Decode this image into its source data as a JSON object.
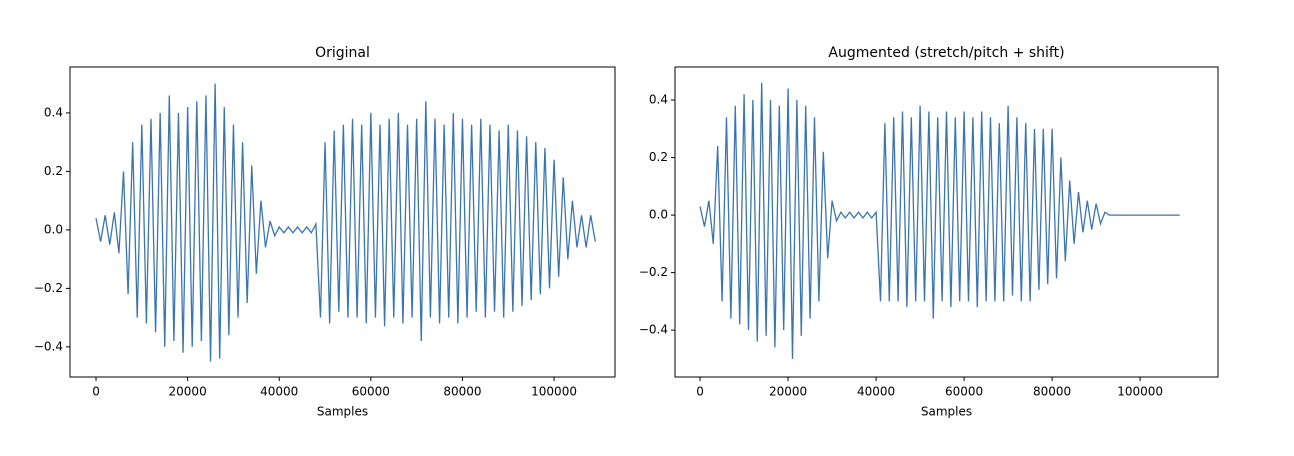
{
  "chart_data": [
    {
      "type": "line",
      "title": "Original",
      "xlabel": "Samples",
      "color": "#3a75b0",
      "x": [
        0,
        1000,
        2000,
        3000,
        4000,
        5000,
        6000,
        7000,
        8000,
        9000,
        10000,
        11000,
        12000,
        13000,
        14000,
        15000,
        16000,
        17000,
        18000,
        19000,
        20000,
        21000,
        22000,
        23000,
        24000,
        25000,
        26000,
        27000,
        28000,
        29000,
        30000,
        31000,
        32000,
        33000,
        34000,
        35000,
        36000,
        37000,
        38000,
        39000,
        40000,
        41000,
        42000,
        43000,
        44000,
        45000,
        46000,
        47000,
        48000,
        49000,
        50000,
        51000,
        52000,
        53000,
        54000,
        55000,
        56000,
        57000,
        58000,
        59000,
        60000,
        61000,
        62000,
        63000,
        64000,
        65000,
        66000,
        67000,
        68000,
        69000,
        70000,
        71000,
        72000,
        73000,
        74000,
        75000,
        76000,
        77000,
        78000,
        79000,
        80000,
        81000,
        82000,
        83000,
        84000,
        85000,
        86000,
        87000,
        88000,
        89000,
        90000,
        91000,
        92000,
        93000,
        94000,
        95000,
        96000,
        97000,
        98000,
        99000,
        100000,
        101000,
        102000,
        103000,
        104000,
        105000,
        106000,
        107000,
        108000,
        109000
      ],
      "values": [
        0.04,
        -0.04,
        0.05,
        -0.05,
        0.06,
        -0.08,
        0.2,
        -0.22,
        0.3,
        -0.3,
        0.36,
        -0.32,
        0.38,
        -0.35,
        0.4,
        -0.4,
        0.46,
        -0.38,
        0.4,
        -0.42,
        0.42,
        -0.4,
        0.44,
        -0.38,
        0.46,
        -0.45,
        0.5,
        -0.44,
        0.42,
        -0.36,
        0.36,
        -0.3,
        0.3,
        -0.25,
        0.22,
        -0.15,
        0.1,
        -0.06,
        0.03,
        -0.02,
        0.01,
        -0.01,
        0.01,
        -0.01,
        0.01,
        -0.01,
        0.01,
        -0.01,
        0.02,
        -0.3,
        0.3,
        -0.32,
        0.34,
        -0.28,
        0.36,
        -0.3,
        0.38,
        -0.3,
        0.36,
        -0.32,
        0.4,
        -0.3,
        0.36,
        -0.33,
        0.38,
        -0.3,
        0.4,
        -0.32,
        0.36,
        -0.3,
        0.38,
        -0.38,
        0.44,
        -0.3,
        0.38,
        -0.32,
        0.36,
        -0.3,
        0.4,
        -0.32,
        0.38,
        -0.3,
        0.36,
        -0.28,
        0.38,
        -0.3,
        0.36,
        -0.28,
        0.34,
        -0.3,
        0.36,
        -0.28,
        0.34,
        -0.26,
        0.32,
        -0.24,
        0.3,
        -0.22,
        0.28,
        -0.2,
        0.24,
        -0.16,
        0.18,
        -0.1,
        0.1,
        -0.06,
        0.05,
        -0.06,
        0.05,
        -0.04
      ],
      "xlim": [
        -5680,
        113300
      ],
      "xticks": [
        0,
        20000,
        40000,
        60000,
        80000,
        100000
      ],
      "ylim": [
        -0.503,
        0.557
      ],
      "yticks": [
        {
          "value": -0.4,
          "label": "−0.4"
        },
        {
          "value": -0.2,
          "label": "−0.2"
        },
        {
          "value": 0,
          "label": "0.0"
        },
        0.2,
        0.4
      ]
    },
    {
      "type": "line",
      "title": "Augmented (stretch/pitch + shift)",
      "xlabel": "Samples",
      "color": "#3a75b0",
      "x": [
        0,
        1000,
        2000,
        3000,
        4000,
        5000,
        6000,
        7000,
        8000,
        9000,
        10000,
        11000,
        12000,
        13000,
        14000,
        15000,
        16000,
        17000,
        18000,
        19000,
        20000,
        21000,
        22000,
        23000,
        24000,
        25000,
        26000,
        27000,
        28000,
        29000,
        30000,
        31000,
        32000,
        33000,
        34000,
        35000,
        36000,
        37000,
        38000,
        39000,
        40000,
        41000,
        42000,
        43000,
        44000,
        45000,
        46000,
        47000,
        48000,
        49000,
        50000,
        51000,
        52000,
        53000,
        54000,
        55000,
        56000,
        57000,
        58000,
        59000,
        60000,
        61000,
        62000,
        63000,
        64000,
        65000,
        66000,
        67000,
        68000,
        69000,
        70000,
        71000,
        72000,
        73000,
        74000,
        75000,
        76000,
        77000,
        78000,
        79000,
        80000,
        81000,
        82000,
        83000,
        84000,
        85000,
        86000,
        87000,
        88000,
        89000,
        90000,
        91000,
        92000,
        93000,
        94000,
        95000,
        96000,
        97000,
        98000,
        99000,
        100000,
        101000,
        102000,
        103000,
        104000,
        105000,
        106000,
        107000,
        108000,
        109000
      ],
      "values": [
        0.03,
        -0.04,
        0.05,
        -0.1,
        0.24,
        -0.3,
        0.34,
        -0.36,
        0.38,
        -0.38,
        0.42,
        -0.4,
        0.4,
        -0.44,
        0.46,
        -0.42,
        0.4,
        -0.46,
        0.38,
        -0.4,
        0.44,
        -0.5,
        0.4,
        -0.42,
        0.38,
        -0.36,
        0.34,
        -0.3,
        0.22,
        -0.15,
        0.05,
        -0.02,
        0.01,
        -0.01,
        0.01,
        -0.01,
        0.01,
        -0.01,
        0.01,
        -0.01,
        0.01,
        -0.3,
        0.32,
        -0.3,
        0.34,
        -0.3,
        0.36,
        -0.32,
        0.34,
        -0.3,
        0.38,
        -0.3,
        0.36,
        -0.36,
        0.34,
        -0.3,
        0.36,
        -0.32,
        0.34,
        -0.3,
        0.36,
        -0.3,
        0.34,
        -0.32,
        0.36,
        -0.3,
        0.34,
        -0.3,
        0.32,
        -0.3,
        0.38,
        -0.28,
        0.34,
        -0.3,
        0.32,
        -0.3,
        0.3,
        -0.26,
        0.3,
        -0.24,
        0.3,
        -0.22,
        0.2,
        -0.16,
        0.12,
        -0.1,
        0.08,
        -0.06,
        0.05,
        -0.05,
        0.04,
        -0.03,
        0.01,
        0,
        0,
        0,
        0,
        0,
        0,
        0,
        0,
        0,
        0,
        0,
        0,
        0,
        0,
        0,
        0,
        0
      ],
      "xlim": [
        -5700,
        117700
      ],
      "xticks": [
        0,
        20000,
        40000,
        60000,
        80000,
        100000
      ],
      "ylim": [
        -0.563,
        0.515
      ],
      "yticks": [
        {
          "value": -0.4,
          "label": "−0.4"
        },
        {
          "value": -0.2,
          "label": "−0.2"
        },
        {
          "value": 0,
          "label": "0.0"
        },
        0.2,
        0.4
      ]
    }
  ]
}
